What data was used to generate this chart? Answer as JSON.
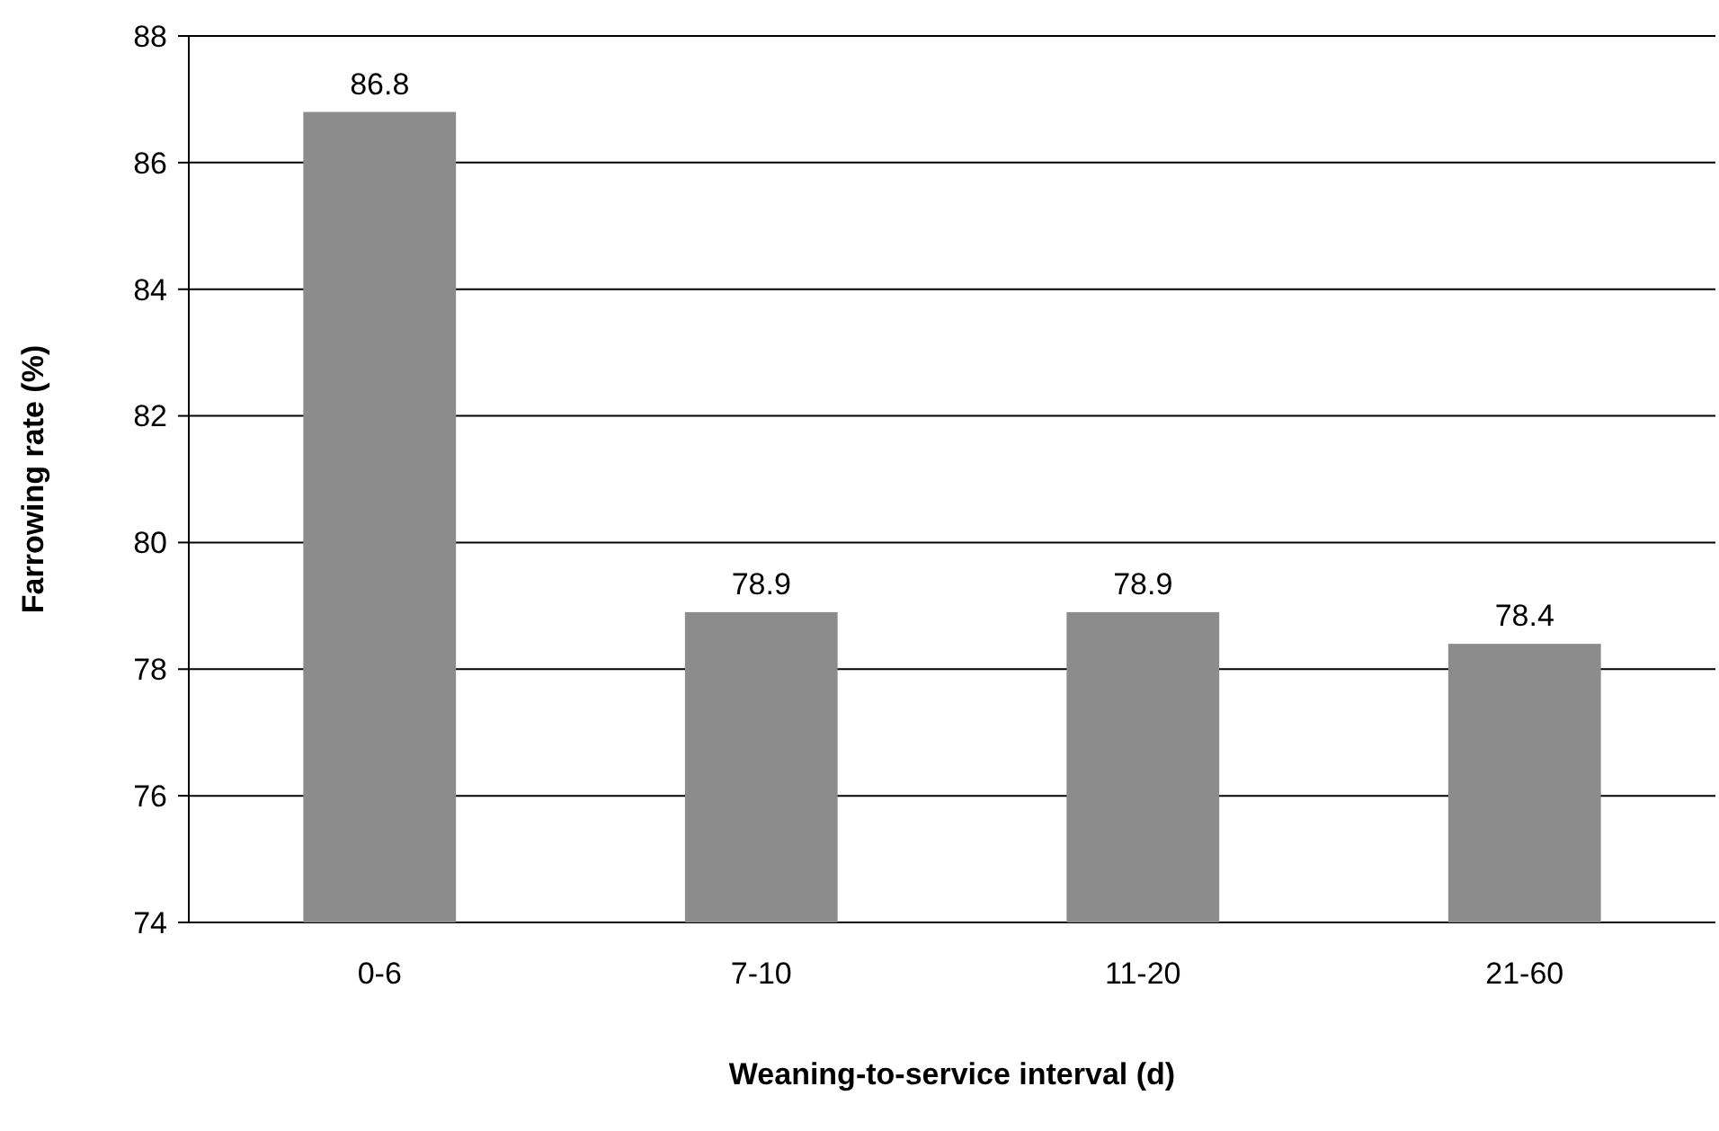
{
  "chart_data": {
    "type": "bar",
    "xlabel": "Weaning-to-service interval (d)",
    "ylabel": "Farrowing rate (%)",
    "categories": [
      "0-6",
      "7-10",
      "11-20",
      "21-60"
    ],
    "values": [
      86.8,
      78.9,
      78.9,
      78.4
    ],
    "color": "#8c8c8c",
    "ylim": [
      74,
      88
    ],
    "yticks": [
      74,
      76,
      78,
      80,
      82,
      84,
      86,
      88
    ],
    "grid": "y",
    "data_labels": true
  }
}
